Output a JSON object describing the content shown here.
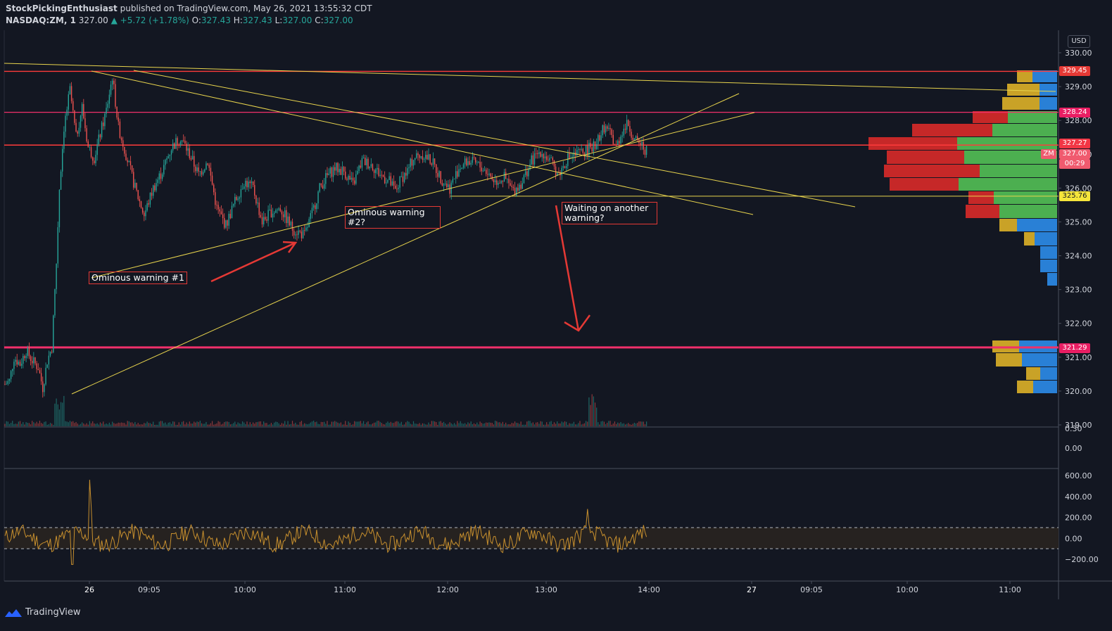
{
  "header": {
    "author": "StockPickingEnthusiast",
    "published_text": "published on TradingView.com, May 26, 2021 13:55:32 CDT",
    "symbol": "NASDAQ:ZM, 1",
    "last": "327.00",
    "change": "▲ +5.72 (+1.78%)",
    "o_label": "O:",
    "o": "327.43",
    "h_label": "H:",
    "h": "327.43",
    "l_label": "L:",
    "l": "327.00",
    "c_label": "C:",
    "c": "327.00"
  },
  "price_axis": {
    "currency": "USD",
    "ticks": [
      "330.00",
      "329.00",
      "328.00",
      "327.00",
      "326.00",
      "325.00",
      "324.00",
      "323.00",
      "322.00",
      "321.00",
      "320.00",
      "319.00"
    ]
  },
  "volume_axis": {
    "ticks": [
      "0.30",
      "0.00"
    ]
  },
  "osc_axis": {
    "ticks": [
      "600.00",
      "400.00",
      "200.00",
      "0.00",
      "−200.00"
    ]
  },
  "time_axis": {
    "ticks": [
      "26",
      "09:05",
      "10:00",
      "11:00",
      "12:00",
      "13:00",
      "14:00",
      "27",
      "09:05",
      "10:00",
      "11:00"
    ]
  },
  "badges": {
    "l1": "329.45",
    "l2": "328.24",
    "l3": "327.27",
    "sym": "ZM",
    "price": "327.00",
    "countdown": "00:29",
    "l4": "325.76",
    "l5": "321.29"
  },
  "annotations": {
    "a1": "Ominous warning #1",
    "a2": "Ominous warning\n#2?",
    "a3": "Waiting on another\nwarning?"
  },
  "footer": {
    "brand": "TradingView"
  },
  "colors": {
    "bg": "#131722",
    "up": "#26a69a",
    "down": "#ef5350",
    "trend": "#e8d44d",
    "resist": "#ff3b3b",
    "pink": "#f0306a",
    "vp_up": "#4caf50",
    "vp_down": "#c62828",
    "vp_up2": "#2980d6",
    "vp_down2": "#c9a227"
  },
  "chart_data": {
    "type": "candlestick",
    "ylim": [
      318.9,
      330.4
    ],
    "horizontal_levels": [
      329.45,
      328.24,
      327.27,
      325.76,
      321.29
    ],
    "osc_levels": [
      100,
      -100
    ],
    "osc_ylim": [
      -350,
      650
    ],
    "price_path": [
      [
        0,
        320.2
      ],
      [
        3,
        320.3
      ],
      [
        6,
        321.0
      ],
      [
        10,
        320.8
      ],
      [
        14,
        321.2
      ],
      [
        18,
        320.9
      ],
      [
        22,
        320.7
      ],
      [
        25,
        320.1
      ],
      [
        28,
        320.9
      ],
      [
        31,
        321.3
      ],
      [
        34,
        323.8
      ],
      [
        36,
        326.0
      ],
      [
        39,
        327.8
      ],
      [
        43,
        328.9
      ],
      [
        47,
        327.5
      ],
      [
        51,
        328.4
      ],
      [
        55,
        327.2
      ],
      [
        59,
        326.9
      ],
      [
        63,
        327.6
      ],
      [
        67,
        328.3
      ],
      [
        71,
        329.3
      ],
      [
        75,
        327.8
      ],
      [
        80,
        327.0
      ],
      [
        86,
        326.0
      ],
      [
        92,
        325.2
      ],
      [
        98,
        326.0
      ],
      [
        104,
        326.5
      ],
      [
        110,
        327.2
      ],
      [
        116,
        327.5
      ],
      [
        122,
        327.0
      ],
      [
        128,
        326.4
      ],
      [
        134,
        326.8
      ],
      [
        140,
        325.4
      ],
      [
        146,
        324.9
      ],
      [
        152,
        325.6
      ],
      [
        158,
        326.2
      ],
      [
        164,
        326.0
      ],
      [
        170,
        325.0
      ],
      [
        176,
        325.3
      ],
      [
        182,
        325.4
      ],
      [
        190,
        324.8
      ],
      [
        198,
        324.6
      ],
      [
        204,
        325.4
      ],
      [
        208,
        326.0
      ],
      [
        212,
        326.3
      ],
      [
        218,
        326.6
      ],
      [
        224,
        326.5
      ],
      [
        230,
        326.1
      ],
      [
        236,
        326.8
      ],
      [
        242,
        326.7
      ],
      [
        248,
        326.4
      ],
      [
        254,
        326.2
      ],
      [
        258,
        325.9
      ],
      [
        262,
        326.3
      ],
      [
        266,
        326.5
      ],
      [
        270,
        326.9
      ],
      [
        276,
        327.0
      ],
      [
        282,
        326.8
      ],
      [
        288,
        326.3
      ],
      [
        294,
        326.0
      ],
      [
        300,
        326.6
      ],
      [
        306,
        326.8
      ],
      [
        312,
        326.7
      ],
      [
        318,
        326.5
      ],
      [
        324,
        326.2
      ],
      [
        330,
        326.3
      ],
      [
        336,
        325.9
      ],
      [
        342,
        326.2
      ],
      [
        348,
        326.8
      ],
      [
        354,
        327.1
      ],
      [
        360,
        326.8
      ],
      [
        366,
        326.4
      ],
      [
        372,
        326.9
      ],
      [
        378,
        327.0
      ],
      [
        384,
        327.1
      ],
      [
        390,
        327.3
      ],
      [
        396,
        327.8
      ],
      [
        400,
        327.6
      ],
      [
        404,
        327.2
      ],
      [
        408,
        327.7
      ],
      [
        412,
        327.9
      ],
      [
        416,
        327.4
      ],
      [
        420,
        327.3
      ],
      [
        424,
        327.1
      ]
    ]
  }
}
